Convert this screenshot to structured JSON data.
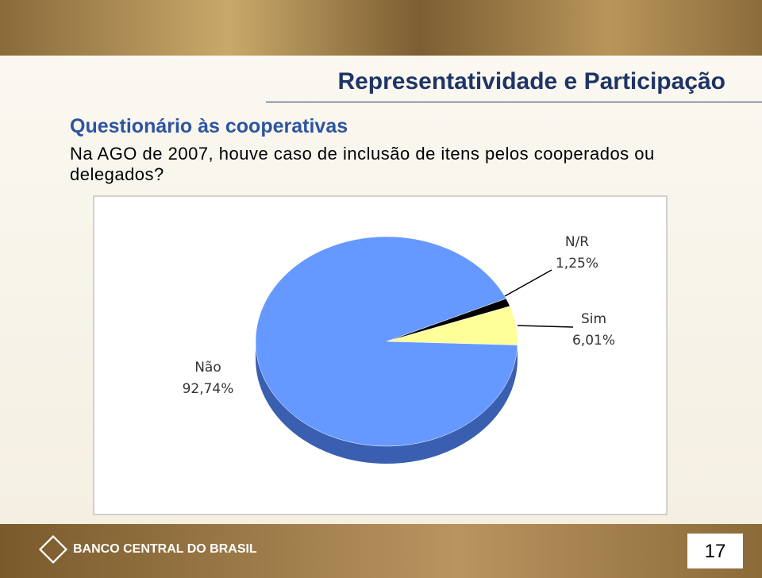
{
  "slide": {
    "title": "Representatividade e Participação",
    "subtitle": "Questionário às cooperativas",
    "question": "Na AGO de 2007, houve caso de inclusão de itens pelos cooperados ou delegados?",
    "brand": "BANCO CENTRAL DO BRASIL",
    "page_number": 17
  },
  "chart_data": {
    "type": "pie",
    "categories": [
      "Sim",
      "N/R",
      "Não"
    ],
    "values": [
      6.01,
      1.25,
      92.74
    ],
    "value_labels": [
      "6,01%",
      "1,25%",
      "92,74%"
    ],
    "colors": [
      "#ffff99",
      "#000000",
      "#6699ff"
    ]
  }
}
